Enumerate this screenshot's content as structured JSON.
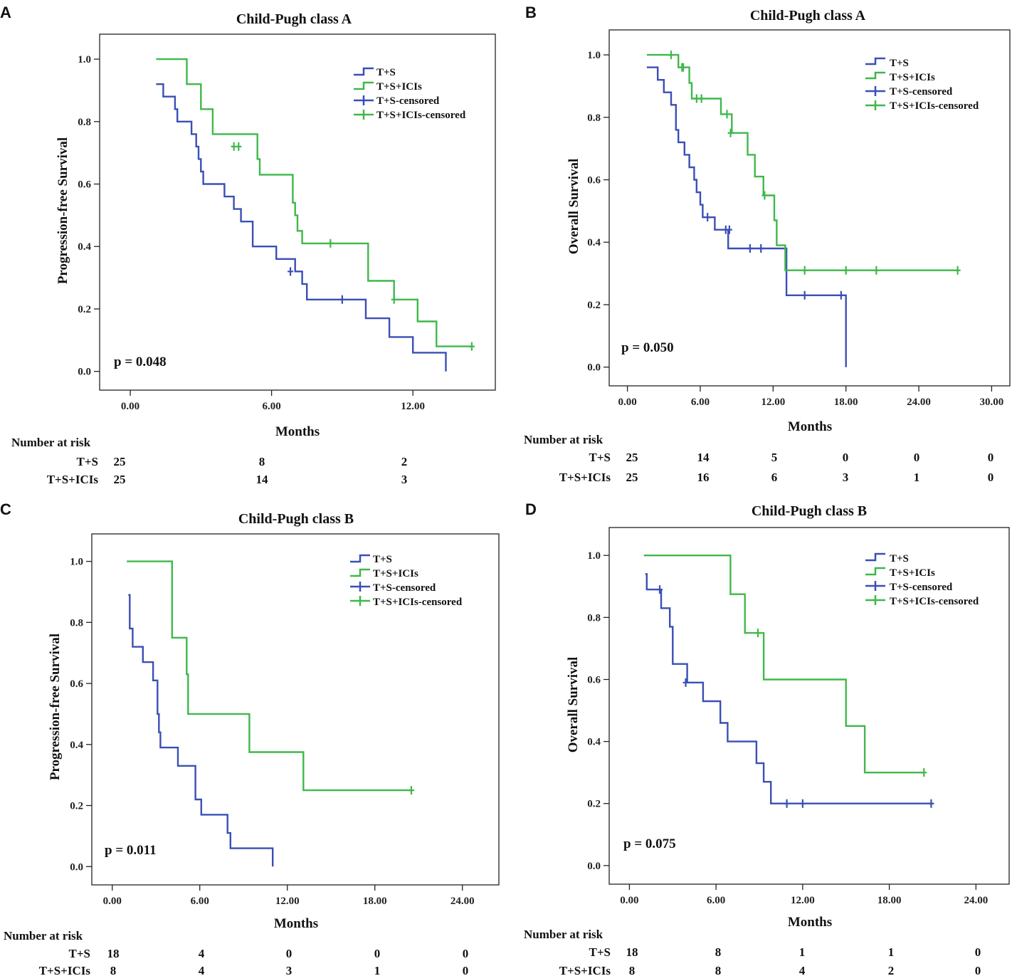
{
  "panels": [
    {
      "letter": "A",
      "title": "Child-Pugh class A",
      "ylabel": "Progression-free Survival",
      "xlabel": "Months",
      "p_value": "p = 0.048",
      "risk_header": "Number at risk",
      "risk_rows": [
        {
          "label": "T+S",
          "values": [
            "25",
            "8",
            "2"
          ]
        },
        {
          "label": "T+S+ICIs",
          "values": [
            "25",
            "14",
            "3"
          ]
        }
      ]
    },
    {
      "letter": "B",
      "title": "Child-Pugh class A",
      "ylabel": "Overall Survival",
      "xlabel": "Months",
      "p_value": "p = 0.050",
      "risk_header": "Number at risk",
      "risk_rows": [
        {
          "label": "T+S",
          "values": [
            "25",
            "14",
            "5",
            "0",
            "0",
            "0"
          ]
        },
        {
          "label": "T+S+ICIs",
          "values": [
            "25",
            "16",
            "6",
            "3",
            "1",
            "0"
          ]
        }
      ]
    },
    {
      "letter": "C",
      "title": "Child-Pugh class B",
      "ylabel": "Progression-free Survival",
      "xlabel": "Months",
      "p_value": "p = 0.011",
      "risk_header": "Number at risk",
      "risk_rows": [
        {
          "label": "T+S",
          "values": [
            "18",
            "4",
            "0",
            "0",
            "0"
          ]
        },
        {
          "label": "T+S+ICIs",
          "values": [
            "8",
            "4",
            "3",
            "1",
            "0"
          ]
        }
      ]
    },
    {
      "letter": "D",
      "title": "Child-Pugh class B",
      "ylabel": "Overall Survival",
      "xlabel": "Months",
      "p_value": "p = 0.075",
      "risk_header": "Number at risk",
      "risk_rows": [
        {
          "label": "T+S",
          "values": [
            "18",
            "8",
            "1",
            "1",
            "0"
          ]
        },
        {
          "label": "T+S+ICIs",
          "values": [
            "8",
            "8",
            "4",
            "2",
            "0"
          ]
        }
      ]
    }
  ],
  "chart_data": [
    {
      "type": "line",
      "title": "Child-Pugh class A",
      "xlabel": "Months",
      "ylabel": "Progression-free Survival",
      "xlim": [
        -1.3,
        15.5
      ],
      "ylim": [
        -0.06,
        1.08
      ],
      "x_ticks": [
        "0.00",
        "6.00",
        "12.00"
      ],
      "y_ticks": [
        "0.0",
        "0.2",
        "0.4",
        "0.6",
        "0.8",
        "1.0"
      ],
      "legend": [
        "T+S",
        "T+S+ICIs",
        "T+S-censored",
        "T+S+ICIs-censored"
      ],
      "legend_position": "top-right",
      "colors": {
        "ts": "#3a4fb5",
        "tsici": "#3fb84a"
      },
      "series": [
        {
          "name": "T+S",
          "x": [
            1.1,
            1.3,
            1.4,
            1.9,
            2.0,
            2.6,
            2.8,
            2.9,
            3.0,
            3.1,
            4.0,
            4.4,
            4.7,
            5.2,
            6.2,
            7.0,
            7.2,
            7.3,
            7.5,
            9.6,
            10.0,
            11.0,
            12.0,
            13.4
          ],
          "y": [
            0.92,
            0.92,
            0.88,
            0.84,
            0.8,
            0.76,
            0.72,
            0.68,
            0.64,
            0.6,
            0.56,
            0.52,
            0.48,
            0.4,
            0.36,
            0.32,
            0.32,
            0.28,
            0.23,
            0.23,
            0.17,
            0.11,
            0.06,
            0.0
          ],
          "censored_x": [
            6.8,
            9.0
          ],
          "censored_y": [
            0.32,
            0.23
          ]
        },
        {
          "name": "T+S+ICIs",
          "x": [
            1.1,
            2.2,
            2.4,
            2.9,
            3.0,
            3.5,
            5.4,
            5.5,
            6.9,
            6.9,
            7.0,
            7.1,
            7.3,
            10.1,
            11.2,
            12.2,
            13.0,
            14.5
          ],
          "y": [
            1.0,
            1.0,
            0.92,
            0.92,
            0.84,
            0.76,
            0.68,
            0.63,
            0.59,
            0.54,
            0.5,
            0.45,
            0.41,
            0.29,
            0.23,
            0.16,
            0.08,
            0.08
          ],
          "censored_x": [
            4.4,
            4.6,
            8.5,
            11.2,
            14.5
          ],
          "censored_y": [
            0.72,
            0.72,
            0.41,
            0.23,
            0.08
          ]
        }
      ]
    },
    {
      "type": "line",
      "title": "Child-Pugh class A",
      "xlabel": "Months",
      "ylabel": "Overall Survival",
      "xlim": [
        -1.5,
        31.5
      ],
      "ylim": [
        -0.06,
        1.08
      ],
      "x_ticks": [
        "0.00",
        "6.00",
        "12.00",
        "18.00",
        "24.00",
        "30.00"
      ],
      "y_ticks": [
        "0.0",
        "0.2",
        "0.4",
        "0.6",
        "0.8",
        "1.0"
      ],
      "legend": [
        "T+S",
        "T+S+ICIs",
        "T+S-censored",
        "T+S+ICIs-censored"
      ],
      "legend_position": "top-right",
      "colors": {
        "ts": "#3a4fb5",
        "tsici": "#3fb84a"
      },
      "series": [
        {
          "name": "T+S",
          "x": [
            1.6,
            2.5,
            3.0,
            3.6,
            4.0,
            4.2,
            4.7,
            5.1,
            5.5,
            5.7,
            6.0,
            6.2,
            6.5,
            7.2,
            8.3,
            9.2,
            13.1,
            18.0
          ],
          "y": [
            0.96,
            0.92,
            0.88,
            0.84,
            0.76,
            0.72,
            0.68,
            0.64,
            0.6,
            0.56,
            0.52,
            0.48,
            0.48,
            0.44,
            0.38,
            0.38,
            0.23,
            0.0
          ],
          "censored_x": [
            6.6,
            8.1,
            8.4,
            10.1,
            11.0,
            14.6,
            17.6
          ],
          "censored_y": [
            0.48,
            0.44,
            0.44,
            0.38,
            0.38,
            0.23,
            0.23
          ]
        },
        {
          "name": "T+S+ICIs",
          "x": [
            1.6,
            4.0,
            4.2,
            5.1,
            5.3,
            7.7,
            8.6,
            9.9,
            10.5,
            11.2,
            12.1,
            12.3,
            13.0,
            27.2
          ],
          "y": [
            1.0,
            1.0,
            0.96,
            0.91,
            0.86,
            0.81,
            0.75,
            0.68,
            0.61,
            0.55,
            0.47,
            0.39,
            0.31,
            0.31
          ],
          "censored_x": [
            3.6,
            4.5,
            4.6,
            5.7,
            6.1,
            8.2,
            8.5,
            11.3,
            14.6,
            18.0,
            20.5,
            27.2
          ],
          "censored_y": [
            1.0,
            0.96,
            0.96,
            0.86,
            0.86,
            0.81,
            0.75,
            0.55,
            0.31,
            0.31,
            0.31,
            0.31
          ]
        }
      ]
    },
    {
      "type": "line",
      "title": "Child-Pugh class B",
      "xlabel": "Months",
      "ylabel": "Progression-free Survival",
      "xlim": [
        -1.4,
        26.5
      ],
      "ylim": [
        -0.06,
        1.09
      ],
      "x_ticks": [
        "0.00",
        "6.00",
        "12.00",
        "18.00",
        "24.00"
      ],
      "y_ticks": [
        "0.0",
        "0.2",
        "0.4",
        "0.6",
        "0.8",
        "1.0"
      ],
      "legend": [
        "T+S",
        "T+S+ICIs",
        "T+S-censored",
        "T+S+ICIs-censored"
      ],
      "legend_position": "top-right",
      "colors": {
        "ts": "#3a4fb5",
        "tsici": "#3fb84a"
      },
      "series": [
        {
          "name": "T+S",
          "x": [
            1.1,
            1.2,
            1.4,
            2.1,
            2.8,
            3.1,
            3.2,
            3.3,
            4.5,
            5.7,
            6.1,
            7.9,
            8.1,
            11.0
          ],
          "y": [
            0.89,
            0.78,
            0.72,
            0.67,
            0.61,
            0.5,
            0.44,
            0.39,
            0.33,
            0.22,
            0.17,
            0.11,
            0.06,
            0.0
          ],
          "censored_x": [],
          "censored_y": []
        },
        {
          "name": "T+S+ICIs",
          "x": [
            1.0,
            4.1,
            5.1,
            5.2,
            9.4,
            13.1,
            20.5
          ],
          "y": [
            1.0,
            0.75,
            0.63,
            0.5,
            0.375,
            0.25,
            0.25
          ],
          "censored_x": [
            20.5
          ],
          "censored_y": [
            0.25
          ]
        }
      ]
    },
    {
      "type": "line",
      "title": "Child-Pugh class B",
      "xlabel": "Months",
      "ylabel": "Overall Survival",
      "xlim": [
        -1.4,
        26.3
      ],
      "ylim": [
        -0.06,
        1.09
      ],
      "x_ticks": [
        "0.00",
        "6.00",
        "12.00",
        "18.00",
        "24.00"
      ],
      "y_ticks": [
        "0.0",
        "0.2",
        "0.4",
        "0.6",
        "0.8",
        "1.0"
      ],
      "legend": [
        "T+S",
        "T+S+ICIs",
        "T+S-censored",
        "T+S+ICIs-censored"
      ],
      "legend_position": "top-right",
      "colors": {
        "ts": "#3a4fb5",
        "tsici": "#3fb84a"
      },
      "series": [
        {
          "name": "T+S",
          "x": [
            1.1,
            1.2,
            2.2,
            2.8,
            3.0,
            4.0,
            5.1,
            6.3,
            6.8,
            8.8,
            9.3,
            9.8,
            20.9
          ],
          "y": [
            0.94,
            0.89,
            0.83,
            0.77,
            0.65,
            0.59,
            0.53,
            0.46,
            0.4,
            0.33,
            0.27,
            0.2,
            0.2
          ],
          "censored_x": [
            2.1,
            3.9,
            10.9,
            12.0,
            20.9
          ],
          "censored_y": [
            0.89,
            0.59,
            0.2,
            0.2,
            0.2
          ]
        },
        {
          "name": "T+S+ICIs",
          "x": [
            1.0,
            7.0,
            8.0,
            9.3,
            15.0,
            16.3,
            20.4
          ],
          "y": [
            1.0,
            0.875,
            0.75,
            0.6,
            0.45,
            0.3,
            0.3
          ],
          "censored_x": [
            8.9,
            20.4
          ],
          "censored_y": [
            0.75,
            0.3
          ]
        }
      ]
    }
  ]
}
